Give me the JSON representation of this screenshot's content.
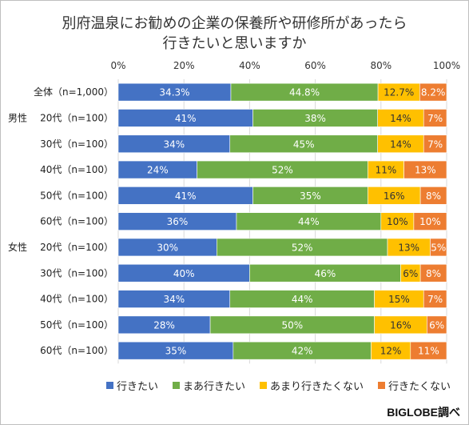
{
  "chart_data": {
    "type": "bar",
    "orientation": "horizontal",
    "stacked": true,
    "title_line1": "別府温泉にお勧めの企業の保養所や研修所があったら",
    "title_line2": "行きたいと思いますか",
    "xlim": [
      0,
      100
    ],
    "x_ticks": [
      "0%",
      "20%",
      "40%",
      "60%",
      "80%",
      "100%"
    ],
    "grid": true,
    "legend_position": "bottom",
    "group_labels": [
      "",
      "男性",
      "",
      "",
      "",
      "",
      "女性",
      "",
      "",
      "",
      ""
    ],
    "categories": [
      "全体（n=1,000）",
      "20代（n=100）",
      "30代（n=100）",
      "40代（n=100）",
      "50代（n=100）",
      "60代（n=100）",
      "20代（n=100）",
      "30代（n=100）",
      "40代（n=100）",
      "50代（n=100）",
      "60代（n=100）"
    ],
    "series": [
      {
        "name": "行きたい",
        "color": "#4472C4",
        "values": [
          34.3,
          41,
          34,
          24,
          41,
          36,
          30,
          40,
          34,
          28,
          35
        ],
        "labels": [
          "34.3%",
          "41%",
          "34%",
          "24%",
          "41%",
          "36%",
          "30%",
          "40%",
          "34%",
          "28%",
          "35%"
        ]
      },
      {
        "name": "まあ行きたい",
        "color": "#70AD47",
        "values": [
          44.8,
          38,
          45,
          52,
          35,
          44,
          52,
          46,
          44,
          50,
          42
        ],
        "labels": [
          "44.8%",
          "38%",
          "45%",
          "52%",
          "35%",
          "44%",
          "52%",
          "46%",
          "44%",
          "50%",
          "42%"
        ]
      },
      {
        "name": "あまり行きたくない",
        "color": "#FFC000",
        "values": [
          12.7,
          14,
          14,
          11,
          16,
          10,
          13,
          6,
          15,
          16,
          12
        ],
        "labels": [
          "12.7%",
          "14%",
          "14%",
          "11%",
          "16%",
          "10%",
          "13%",
          "6%",
          "15%",
          "16%",
          "12%"
        ]
      },
      {
        "name": "行きたくない",
        "color": "#ED7D31",
        "values": [
          8.2,
          7,
          7,
          13,
          8,
          10,
          5,
          8,
          7,
          6,
          11
        ],
        "labels": [
          "8.2%",
          "7%",
          "7%",
          "13%",
          "8%",
          "10%",
          "5%",
          "8%",
          "7%",
          "6%",
          "11%"
        ]
      }
    ]
  },
  "source": "BIGLOBE調べ"
}
